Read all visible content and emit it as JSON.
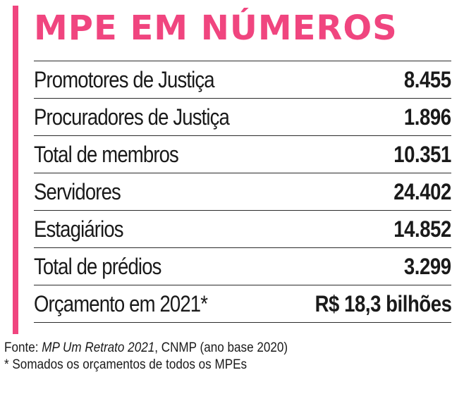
{
  "title": "MPE EM NÚMEROS",
  "colors": {
    "accent": "#f0457f",
    "text": "#1a1a1a",
    "rule": "#2b2b2b"
  },
  "rows": [
    {
      "label": "Promotores de Justiça",
      "value": "8.455"
    },
    {
      "label": "Procuradores de Justiça",
      "value": "1.896"
    },
    {
      "label": "Total de membros",
      "value": "10.351"
    },
    {
      "label": "Servidores",
      "value": "24.402"
    },
    {
      "label": "Estagiários",
      "value": "14.852"
    },
    {
      "label": "Total de prédios",
      "value": "3.299"
    },
    {
      "label": "Orçamento em 2021*",
      "value": "R$ 18,3 bilhões"
    }
  ],
  "footer": {
    "source_prefix": "Fonte: ",
    "source_title": "MP Um Retrato 2021",
    "source_suffix": ", CNMP (ano base 2020)",
    "note": "* Somados os orçamentos de todos os MPEs"
  }
}
